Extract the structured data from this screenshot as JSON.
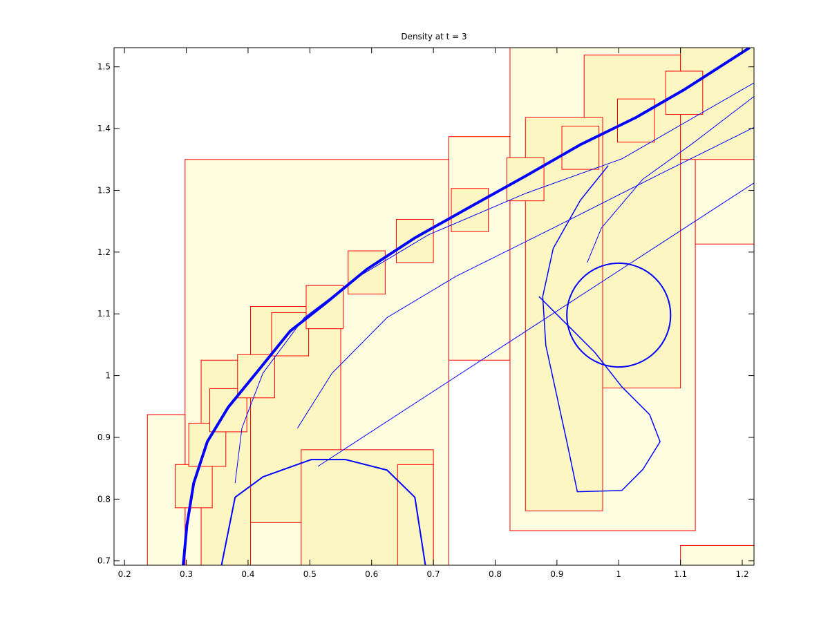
{
  "chart_data": {
    "type": "patches",
    "title": "Density at t = 3",
    "xlim": [
      0.183,
      1.219
    ],
    "ylim": [
      0.693,
      1.531
    ],
    "xticks": [
      0.2,
      0.3,
      0.4,
      0.5,
      0.6,
      0.7,
      0.8,
      0.9,
      1,
      1.1,
      1.2
    ],
    "yticks": [
      0.7,
      0.8,
      0.9,
      1,
      1.1,
      1.2,
      1.3,
      1.4,
      1.5
    ],
    "patch_color": "#ff0000",
    "level_colors": [
      "#fffde0",
      "#fbf6c2"
    ],
    "contour_color": "#0000ff",
    "patches": [
      {
        "x0": 0.298,
        "x1": 0.725,
        "y0": 0.693,
        "y1": 1.35,
        "level": 1
      },
      {
        "x0": 0.725,
        "x1": 0.824,
        "y0": 1.025,
        "y1": 1.387,
        "level": 1
      },
      {
        "x0": 0.824,
        "x1": 1.124,
        "y0": 0.749,
        "y1": 1.531,
        "level": 1
      },
      {
        "x0": 1.124,
        "x1": 1.219,
        "y0": 1.213,
        "y1": 1.531,
        "level": 1
      },
      {
        "x0": 1.1,
        "x1": 1.219,
        "y0": 0.693,
        "y1": 0.725,
        "level": 1
      },
      {
        "x0": 0.237,
        "x1": 0.298,
        "y0": 0.693,
        "y1": 0.937,
        "level": 1
      },
      {
        "x0": 0.944,
        "x1": 1.1,
        "y0": 0.98,
        "y1": 1.519,
        "level": 2
      },
      {
        "x0": 0.849,
        "x1": 0.974,
        "y0": 0.781,
        "y1": 1.418,
        "level": 2
      },
      {
        "x0": 0.404,
        "x1": 0.55,
        "y0": 0.762,
        "y1": 1.112,
        "level": 2
      },
      {
        "x0": 0.324,
        "x1": 0.404,
        "y0": 0.693,
        "y1": 1.025,
        "level": 2
      },
      {
        "x0": 0.486,
        "x1": 0.7,
        "y0": 0.693,
        "y1": 0.88,
        "level": 2
      },
      {
        "x0": 0.642,
        "x1": 0.7,
        "y0": 0.693,
        "y1": 0.856,
        "level": 2
      },
      {
        "x0": 1.1,
        "x1": 1.219,
        "y0": 1.35,
        "y1": 1.531,
        "level": 2
      },
      {
        "x0": 0.282,
        "x1": 0.342,
        "y0": 0.786,
        "y1": 0.856,
        "level": 2
      },
      {
        "x0": 0.304,
        "x1": 0.364,
        "y0": 0.853,
        "y1": 0.923,
        "level": 2
      },
      {
        "x0": 0.338,
        "x1": 0.398,
        "y0": 0.909,
        "y1": 0.979,
        "level": 2
      },
      {
        "x0": 0.383,
        "x1": 0.443,
        "y0": 0.964,
        "y1": 1.034,
        "level": 2
      },
      {
        "x0": 0.438,
        "x1": 0.498,
        "y0": 1.032,
        "y1": 1.102,
        "level": 2
      },
      {
        "x0": 0.494,
        "x1": 0.554,
        "y0": 1.076,
        "y1": 1.146,
        "level": 2
      },
      {
        "x0": 0.562,
        "x1": 0.622,
        "y0": 1.132,
        "y1": 1.202,
        "level": 2
      },
      {
        "x0": 0.64,
        "x1": 0.7,
        "y0": 1.183,
        "y1": 1.253,
        "level": 2
      },
      {
        "x0": 0.729,
        "x1": 0.789,
        "y0": 1.233,
        "y1": 1.303,
        "level": 2
      },
      {
        "x0": 0.819,
        "x1": 0.879,
        "y0": 1.283,
        "y1": 1.353,
        "level": 2
      },
      {
        "x0": 0.908,
        "x1": 0.968,
        "y0": 1.334,
        "y1": 1.404,
        "level": 2
      },
      {
        "x0": 0.998,
        "x1": 1.058,
        "y0": 1.378,
        "y1": 1.448,
        "level": 2
      },
      {
        "x0": 1.076,
        "x1": 1.136,
        "y0": 1.423,
        "y1": 1.493,
        "level": 2
      }
    ],
    "contours": [
      {
        "width": 4,
        "x": [
          0.295,
          0.301,
          0.312,
          0.334,
          0.368,
          0.413,
          0.468,
          0.524,
          0.592,
          0.67,
          0.759,
          0.849,
          0.938,
          1.028,
          1.106,
          1.184,
          1.212
        ],
        "y": [
          0.693,
          0.758,
          0.826,
          0.893,
          0.949,
          1.004,
          1.072,
          1.116,
          1.172,
          1.223,
          1.273,
          1.323,
          1.374,
          1.418,
          1.463,
          1.513,
          1.531
        ]
      },
      {
        "width": 2,
        "x": [
          0.357,
          0.379,
          0.424,
          0.502,
          0.558,
          0.625,
          0.67,
          0.687
        ],
        "y": [
          0.693,
          0.803,
          0.836,
          0.864,
          0.864,
          0.847,
          0.803,
          0.693
        ]
      },
      {
        "width": 1,
        "x": [
          0.513,
          1.219
        ],
        "y": [
          0.853,
          1.312
        ]
      },
      {
        "width": 1,
        "x": [
          0.379,
          0.39,
          0.424,
          0.491,
          0.58,
          0.692,
          0.849,
          1.005,
          1.219
        ],
        "y": [
          0.826,
          0.915,
          1.004,
          1.094,
          1.161,
          1.228,
          1.295,
          1.351,
          1.474
        ]
      },
      {
        "width": 1,
        "x": [
          0.48,
          0.536,
          0.625,
          0.737,
          0.894,
          1.072,
          1.219
        ],
        "y": [
          0.915,
          1.004,
          1.094,
          1.161,
          1.239,
          1.329,
          1.402
        ]
      },
      {
        "width": 1.5,
        "x": [
          0.983,
          0.938,
          0.894,
          0.877,
          0.882,
          0.899,
          0.916,
          0.933,
          1.005,
          1.039,
          1.067,
          1.05,
          1.005,
          0.961,
          0.916,
          0.871
        ],
        "y": [
          1.34,
          1.284,
          1.206,
          1.128,
          1.049,
          0.971,
          0.893,
          0.812,
          0.814,
          0.848,
          0.893,
          0.937,
          0.982,
          1.038,
          1.083,
          1.128
        ]
      },
      {
        "width": 1,
        "x": [
          0.949,
          0.972,
          1.039,
          1.117,
          1.219
        ],
        "y": [
          1.183,
          1.239,
          1.318,
          1.374,
          1.452
        ]
      }
    ],
    "circles": [
      {
        "cx": 1.0,
        "cy": 1.098,
        "r": 0.084
      }
    ]
  }
}
